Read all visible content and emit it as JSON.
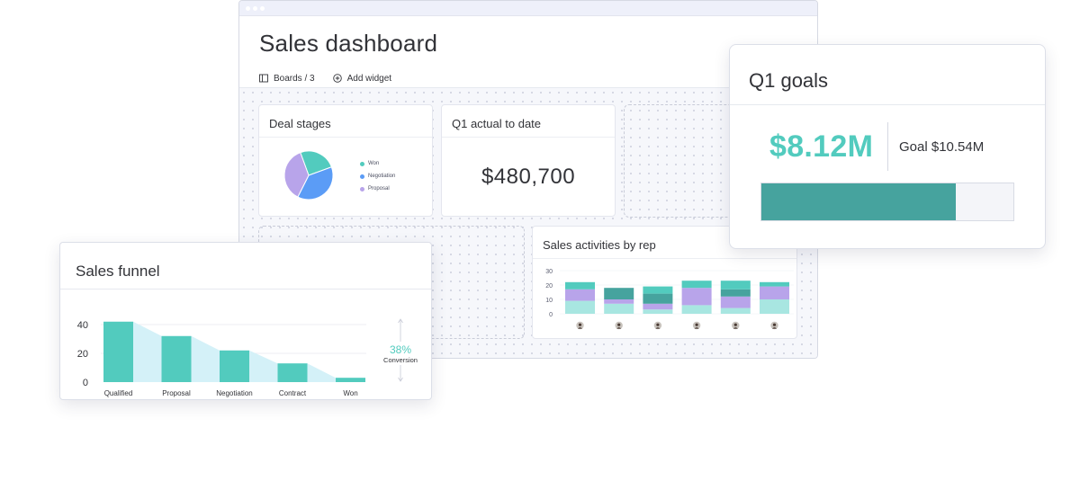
{
  "dashboard": {
    "title": "Sales dashboard",
    "toolbar": {
      "boards_label": "Boards / 3",
      "add_widget_label": "Add widget"
    }
  },
  "deal_stages": {
    "title": "Deal stages",
    "legend": [
      {
        "label": "Won",
        "color": "#52cbbe"
      },
      {
        "label": "Negotiation",
        "color": "#5b9cf6"
      },
      {
        "label": "Proposal",
        "color": "#b8a4ea"
      }
    ],
    "chart_data": {
      "type": "pie",
      "labels": [
        "Won",
        "Negotiation",
        "Proposal"
      ],
      "values": [
        25,
        38,
        37
      ],
      "colors": [
        "#52cbbe",
        "#5b9cf6",
        "#b8a4ea"
      ]
    }
  },
  "q1_actual": {
    "title": "Q1 actual to date",
    "value": "$480,700"
  },
  "sales_activities": {
    "title": "Sales activities by rep",
    "chart_data": {
      "type": "bar",
      "stacked": true,
      "categories": [
        "rep1",
        "rep2",
        "rep3",
        "rep4",
        "rep5",
        "rep6"
      ],
      "yticks": [
        "30",
        "20",
        "10",
        "0"
      ],
      "ylim": [
        0,
        30
      ],
      "series": [
        {
          "color": "#a8e6e1",
          "values": [
            9,
            7,
            3,
            6,
            4,
            10
          ]
        },
        {
          "color": "#b8a4ea",
          "values": [
            8,
            3,
            4,
            12,
            8,
            9
          ]
        },
        {
          "color": "#46a39e",
          "values": [
            0,
            8,
            7,
            0,
            5,
            0
          ]
        },
        {
          "color": "#52cbbe",
          "values": [
            5,
            0,
            5,
            5,
            6,
            3
          ]
        }
      ]
    }
  },
  "q1_goals": {
    "title": "Q1 goals",
    "value": "$8.12M",
    "goal_label": "Goal $10.54M",
    "progress": 0.77,
    "fill_color": "#46a39e"
  },
  "sales_funnel": {
    "title": "Sales funnel",
    "conversion_value": "38%",
    "conversion_label": "Conversion",
    "chart_data": {
      "type": "bar",
      "categories": [
        "Qualified",
        "Proposal",
        "Negotiation",
        "Contract",
        "Won"
      ],
      "values": [
        42,
        32,
        22,
        13,
        3
      ],
      "yticks": [
        "40",
        "20",
        "0"
      ],
      "ylim": [
        0,
        45
      ],
      "bar_color": "#52cbbe",
      "area_color": "#d4f1f8"
    }
  }
}
